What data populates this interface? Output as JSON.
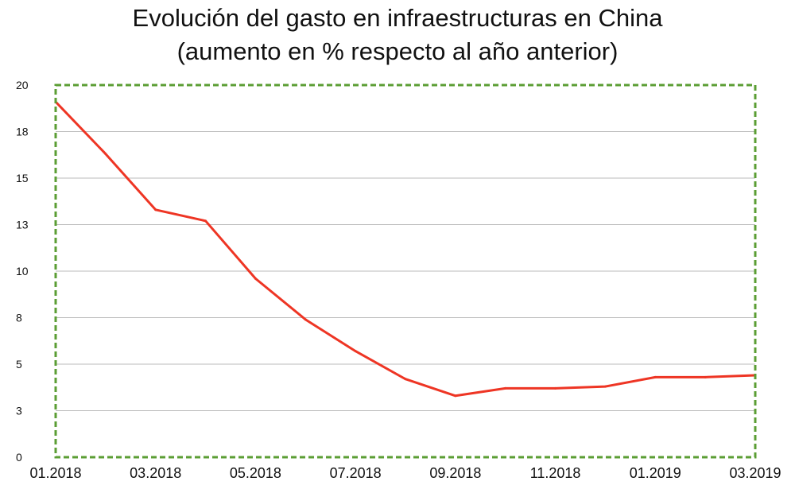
{
  "chart_data": {
    "type": "line",
    "title_line1": "Evolución del gasto en infraestructuras en China",
    "title_line2": "(aumento en % respecto al año anterior)",
    "x": [
      "01.2018",
      "02.2018",
      "03.2018",
      "04.2018",
      "05.2018",
      "06.2018",
      "07.2018",
      "08.2018",
      "09.2018",
      "10.2018",
      "11.2018",
      "12.2018",
      "01.2019",
      "02.2019",
      "03.2019"
    ],
    "x_tick_labels": [
      "01.2018",
      "03.2018",
      "05.2018",
      "07.2018",
      "09.2018",
      "11.2018",
      "01.2019",
      "03.2019"
    ],
    "y_tick_labels": [
      "0",
      "3",
      "5",
      "8",
      "10",
      "13",
      "15",
      "18",
      "20"
    ],
    "ylim": [
      0,
      20
    ],
    "grid": true,
    "series": [
      {
        "values": [
          19.1,
          16.3,
          13.3,
          12.7,
          9.6,
          7.4,
          5.7,
          4.2,
          3.3,
          3.7,
          3.7,
          3.8,
          4.3,
          4.3,
          4.4
        ],
        "color": "#ee3524"
      }
    ],
    "frame_color": "#5b9e34",
    "grid_color": "#bbbbbb"
  }
}
